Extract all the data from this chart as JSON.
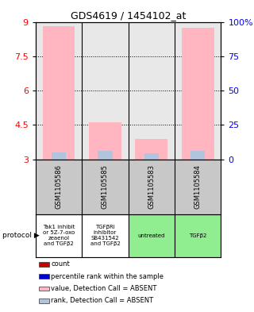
{
  "title": "GDS4619 / 1454102_at",
  "samples": [
    "GSM1105586",
    "GSM1105585",
    "GSM1105583",
    "GSM1105584"
  ],
  "protocols": [
    "Tak1 inhibit\nor 5Z-7-oxo\nzeaenol\nand TGFβ2",
    "TGFβRI\ninhibitor\nSB431542\nand TGFβ2",
    "untreated",
    "TGFβ2"
  ],
  "protocol_colors": [
    "#ffffff",
    "#ffffff",
    "#90ee90",
    "#90ee90"
  ],
  "bar_values": [
    8.8,
    4.6,
    3.9,
    8.75
  ],
  "bar_base": 3.0,
  "rank_values": [
    3.3,
    3.35,
    3.25,
    3.35
  ],
  "rank_base": 3.0,
  "ylim_left": [
    3,
    9
  ],
  "yticks_left": [
    3,
    4.5,
    6,
    7.5,
    9
  ],
  "yticks_right": [
    0,
    25,
    50,
    75,
    100
  ],
  "bar_color": "#ffb6c1",
  "rank_color": "#b0c4de",
  "bg_color": "#ffffff",
  "legend_items": [
    {
      "color": "#cc0000",
      "label": "count"
    },
    {
      "color": "#0000cc",
      "label": "percentile rank within the sample"
    },
    {
      "color": "#ffb6c1",
      "label": "value, Detection Call = ABSENT"
    },
    {
      "color": "#b0c4de",
      "label": "rank, Detection Call = ABSENT"
    }
  ]
}
